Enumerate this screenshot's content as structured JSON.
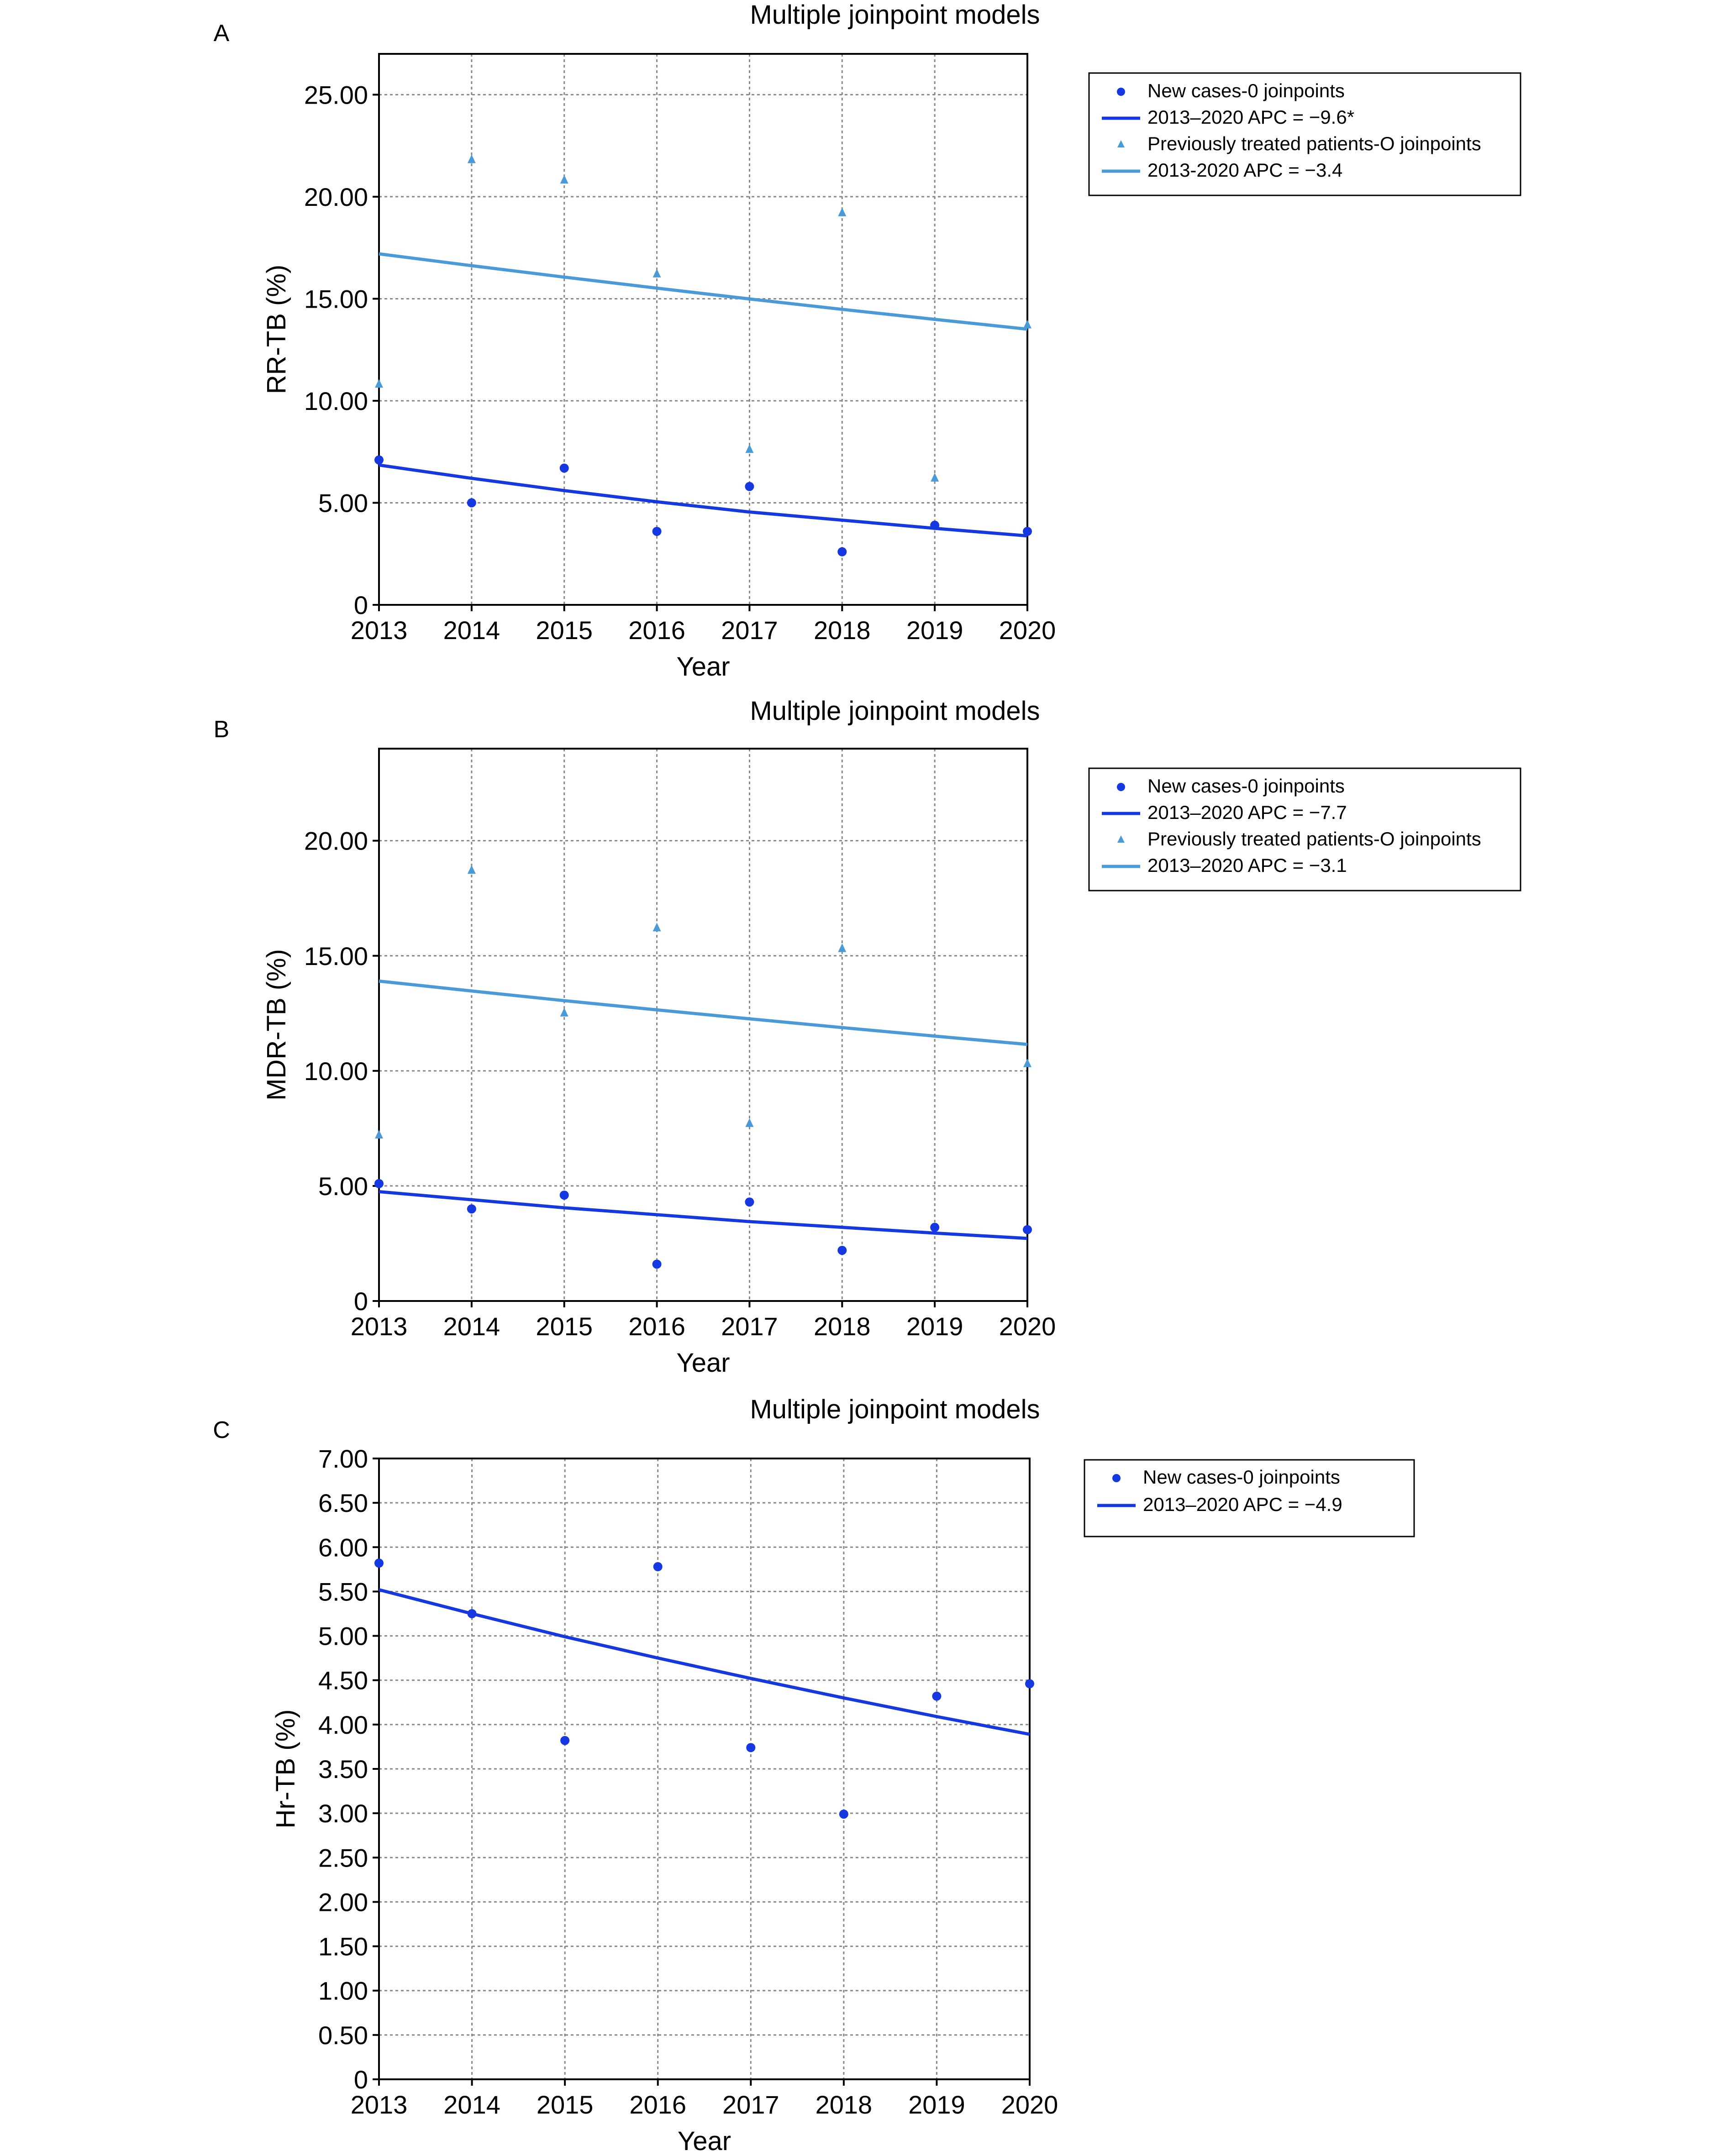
{
  "chart_data": [
    {
      "type": "scatter",
      "panel_label": "A",
      "title": "Multiple joinpoint models",
      "xlabel": "Year",
      "ylabel": "RR-TB (%)",
      "x": [
        2013,
        2014,
        2015,
        2016,
        2017,
        2018,
        2019,
        2020
      ],
      "xlim": [
        2013,
        2020
      ],
      "ylim": [
        0,
        27
      ],
      "yticks": [
        0,
        5,
        10,
        15,
        20,
        25
      ],
      "ytick_labels": [
        "0",
        "5.00",
        "10.00",
        "15.00",
        "20.00",
        "25.00"
      ],
      "grid": true,
      "legend_position": "top-right",
      "series": [
        {
          "name": "New cases-0 joinpoints",
          "kind": "points",
          "marker": "circle",
          "color": "#1538e0",
          "values": [
            7.1,
            5.0,
            6.7,
            3.6,
            5.8,
            2.6,
            3.9,
            3.6
          ]
        },
        {
          "name": "2013–2020 APC = −9.6*",
          "kind": "line",
          "color": "#1538e0",
          "values": [
            6.85,
            6.2,
            5.6,
            5.05,
            4.55,
            4.15,
            3.75,
            3.38
          ]
        },
        {
          "name": "Previously treated patients-O joinpoints",
          "kind": "points",
          "marker": "triangle",
          "color": "#4a9ad8",
          "values": [
            10.8,
            21.8,
            20.8,
            16.2,
            7.6,
            19.2,
            6.2,
            13.7
          ]
        },
        {
          "name": "2013-2020 APC = −3.4",
          "kind": "line",
          "color": "#4a9ad8",
          "values": [
            17.2,
            16.62,
            16.06,
            15.52,
            14.99,
            14.48,
            13.99,
            13.51
          ]
        }
      ]
    },
    {
      "type": "scatter",
      "panel_label": "B",
      "title": "Multiple joinpoint models",
      "xlabel": "Year",
      "ylabel": "MDR-TB (%)",
      "x": [
        2013,
        2014,
        2015,
        2016,
        2017,
        2018,
        2019,
        2020
      ],
      "xlim": [
        2013,
        2020
      ],
      "ylim": [
        0,
        24
      ],
      "yticks": [
        0,
        5,
        10,
        15,
        20
      ],
      "ytick_labels": [
        "0",
        "5.00",
        "10.00",
        "15.00",
        "20.00"
      ],
      "grid": true,
      "legend_position": "top-right",
      "series": [
        {
          "name": "New cases-0 joinpoints",
          "kind": "points",
          "marker": "circle",
          "color": "#1538e0",
          "values": [
            5.1,
            4.0,
            4.6,
            1.6,
            4.3,
            2.2,
            3.2,
            3.1
          ]
        },
        {
          "name": "2013–2020 APC = −7.7",
          "kind": "line",
          "color": "#1538e0",
          "values": [
            4.75,
            4.4,
            4.05,
            3.75,
            3.45,
            3.2,
            2.95,
            2.72
          ]
        },
        {
          "name": "Previously treated patients-O joinpoints",
          "kind": "points",
          "marker": "triangle",
          "color": "#4a9ad8",
          "values": [
            7.2,
            18.7,
            12.5,
            16.2,
            7.7,
            15.3,
            null,
            10.3
          ]
        },
        {
          "name": "2013–2020 APC = −3.1",
          "kind": "line",
          "color": "#4a9ad8",
          "values": [
            13.9,
            13.47,
            13.05,
            12.65,
            12.26,
            11.88,
            11.51,
            11.15
          ]
        }
      ]
    },
    {
      "type": "scatter",
      "panel_label": "C",
      "title": "Multiple joinpoint models",
      "xlabel": "Year",
      "ylabel": "Hr-TB (%)",
      "x": [
        2013,
        2014,
        2015,
        2016,
        2017,
        2018,
        2019,
        2020
      ],
      "xlim": [
        2013,
        2020
      ],
      "ylim": [
        0,
        7
      ],
      "yticks": [
        0,
        0.5,
        1,
        1.5,
        2,
        2.5,
        3,
        3.5,
        4,
        4.5,
        5,
        5.5,
        6,
        6.5,
        7
      ],
      "ytick_labels": [
        "0",
        "0.50",
        "1.00",
        "1.50",
        "2.00",
        "2.50",
        "3.00",
        "3.50",
        "4.00",
        "4.50",
        "5.00",
        "5.50",
        "6.00",
        "6.50",
        "7.00"
      ],
      "grid": true,
      "legend_position": "top-right",
      "series": [
        {
          "name": "New cases-0 joinpoints",
          "kind": "points",
          "marker": "circle",
          "color": "#1538e0",
          "values": [
            5.82,
            5.25,
            3.82,
            5.78,
            3.74,
            2.99,
            4.32,
            4.46
          ]
        },
        {
          "name": "2013–2020 APC = −4.9",
          "kind": "line",
          "color": "#1538e0",
          "values": [
            5.52,
            5.25,
            4.99,
            4.75,
            4.52,
            4.3,
            4.09,
            3.89
          ]
        }
      ]
    }
  ]
}
